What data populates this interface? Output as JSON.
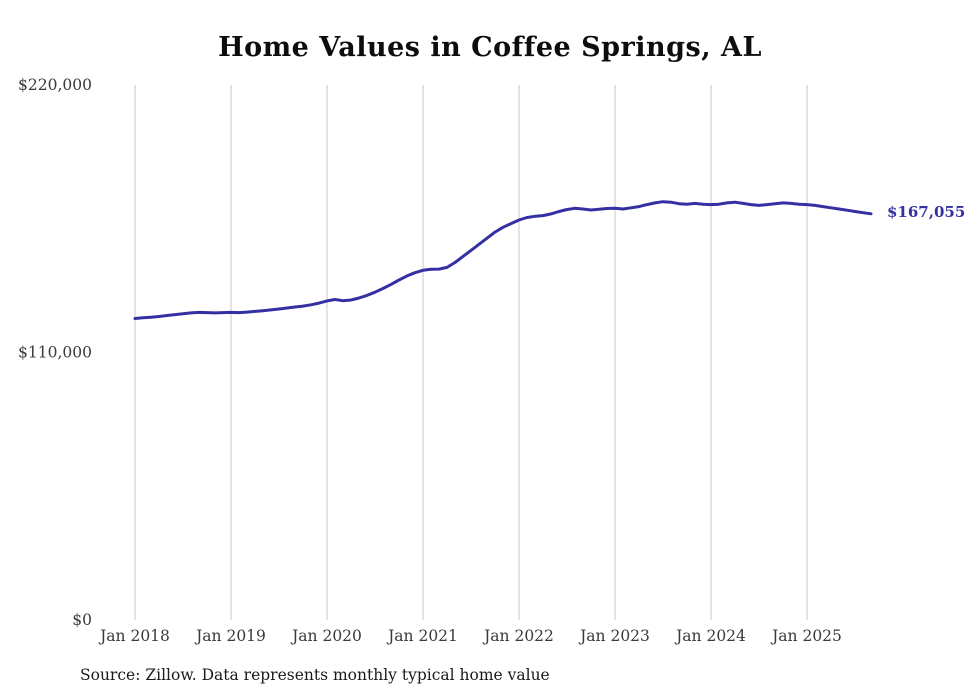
{
  "chart_data": {
    "type": "line",
    "title": "Home Values in Coffee Springs, AL",
    "source_note": "Source: Zillow. Data represents monthly typical home value",
    "series_name": "Monthly typical home value",
    "xlabel": "",
    "ylabel": "",
    "ylim": [
      0,
      220000
    ],
    "y_ticks": [
      {
        "value": 0,
        "label": "$0"
      },
      {
        "value": 110000,
        "label": "$110,000"
      },
      {
        "value": 220000,
        "label": "$220,000"
      }
    ],
    "x_tick_labels": [
      "Jan 2018",
      "Jan 2019",
      "Jan 2020",
      "Jan 2021",
      "Jan 2022",
      "Jan 2023",
      "Jan 2024",
      "Jan 2025"
    ],
    "legend": "none",
    "grid": "vertical",
    "line_color": "#3430a3",
    "grid_color": "#c9c9c9",
    "end_label": "$167,055",
    "months": [
      "2018-01",
      "2018-02",
      "2018-03",
      "2018-04",
      "2018-05",
      "2018-06",
      "2018-07",
      "2018-08",
      "2018-09",
      "2018-10",
      "2018-11",
      "2018-12",
      "2019-01",
      "2019-02",
      "2019-03",
      "2019-04",
      "2019-05",
      "2019-06",
      "2019-07",
      "2019-08",
      "2019-09",
      "2019-10",
      "2019-11",
      "2019-12",
      "2020-01",
      "2020-02",
      "2020-03",
      "2020-04",
      "2020-05",
      "2020-06",
      "2020-07",
      "2020-08",
      "2020-09",
      "2020-10",
      "2020-11",
      "2020-12",
      "2021-01",
      "2021-02",
      "2021-03",
      "2021-04",
      "2021-05",
      "2021-06",
      "2021-07",
      "2021-08",
      "2021-09",
      "2021-10",
      "2021-11",
      "2021-12",
      "2022-01",
      "2022-02",
      "2022-03",
      "2022-04",
      "2022-05",
      "2022-06",
      "2022-07",
      "2022-08",
      "2022-09",
      "2022-10",
      "2022-11",
      "2022-12",
      "2023-01",
      "2023-02",
      "2023-03",
      "2023-04",
      "2023-05",
      "2023-06",
      "2023-07",
      "2023-08",
      "2023-09",
      "2023-10",
      "2023-11",
      "2023-12",
      "2024-01",
      "2024-02",
      "2024-03",
      "2024-04",
      "2024-05",
      "2024-06",
      "2024-07",
      "2024-08",
      "2024-09",
      "2024-10",
      "2024-11",
      "2024-12",
      "2025-01",
      "2025-02",
      "2025-03",
      "2025-04",
      "2025-05",
      "2025-06",
      "2025-07",
      "2025-08",
      "2025-09"
    ],
    "values": [
      124000,
      124300,
      124500,
      124800,
      125200,
      125600,
      125900,
      126300,
      126500,
      126400,
      126300,
      126400,
      126500,
      126400,
      126600,
      126900,
      127200,
      127500,
      127900,
      128300,
      128700,
      129100,
      129600,
      130300,
      131200,
      131800,
      131300,
      131600,
      132400,
      133500,
      134800,
      136300,
      138000,
      139800,
      141500,
      142800,
      143800,
      144200,
      144300,
      145000,
      147000,
      149500,
      152000,
      154500,
      157000,
      159500,
      161500,
      163000,
      164500,
      165500,
      166000,
      166300,
      167000,
      168000,
      168800,
      169300,
      169000,
      168600,
      168900,
      169200,
      169300,
      169000,
      169500,
      170000,
      170800,
      171500,
      172000,
      171800,
      171200,
      171000,
      171300,
      171000,
      170800,
      171000,
      171500,
      171800,
      171300,
      170800,
      170500,
      170800,
      171200,
      171500,
      171300,
      171000,
      170800,
      170500,
      170000,
      169500,
      169000,
      168500,
      168000,
      167500,
      167055
    ]
  }
}
